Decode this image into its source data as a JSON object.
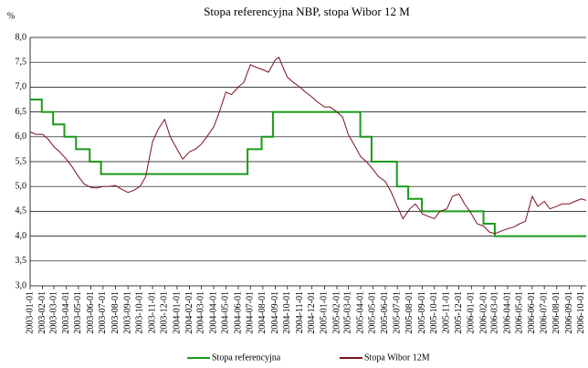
{
  "chart_data": {
    "type": "line",
    "title": "Stopa referencyjna NBP, stopa Wibor 12 M",
    "y_label": "%",
    "xlim": [
      "2003-01-01",
      "2006-10-13"
    ],
    "ylim": [
      3,
      8
    ],
    "yticks": [
      {
        "value": 3,
        "label": "3,0"
      },
      {
        "value": 3.5,
        "label": "3,5"
      },
      {
        "value": 4,
        "label": "4,0"
      },
      {
        "value": 4.5,
        "label": "4,5"
      },
      {
        "value": 5,
        "label": "5,0"
      },
      {
        "value": 5.5,
        "label": "5,5"
      },
      {
        "value": 6,
        "label": "6,0"
      },
      {
        "value": 6.5,
        "label": "6,5"
      },
      {
        "value": 7,
        "label": "7,0"
      },
      {
        "value": 7.5,
        "label": "7,5"
      },
      {
        "value": 8,
        "label": "8,0"
      }
    ],
    "xticks": [
      "2003-01-01",
      "2003-02-01",
      "2003-03-01",
      "2003-04-01",
      "2003-05-01",
      "2003-06-01",
      "2003-07-01",
      "2003-08-01",
      "2003-09-01",
      "2003-10-01",
      "2003-11-01",
      "2003-12-01",
      "2004-01-01",
      "2004-02-01",
      "2004-03-01",
      "2004-04-01",
      "2004-05-01",
      "2004-06-01",
      "2004-07-01",
      "2004-08-01",
      "2004-09-01",
      "2004-10-01",
      "2004-11-01",
      "2004-12-01",
      "2005-01-01",
      "2005-02-01",
      "2005-03-01",
      "2005-04-01",
      "2005-05-01",
      "2005-06-01",
      "2005-07-01",
      "2005-08-01",
      "2005-09-01",
      "2005-10-01",
      "2005-11-01",
      "2005-12-01",
      "2006-01-01",
      "2006-02-01",
      "2006-03-01",
      "2006-04-01",
      "2006-05-01",
      "2006-06-01",
      "2006-07-01",
      "2006-08-01",
      "2006-09-01",
      "2006-10-01"
    ],
    "grid": true,
    "legend": "bottom",
    "series": [
      {
        "name": "Stopa referencyjna",
        "color": "#1a9a1a",
        "drawstyle": "steps-post",
        "x": [
          "2003-01-01",
          "2003-01-30",
          "2003-02-27",
          "2003-03-27",
          "2003-04-25",
          "2003-05-29",
          "2003-06-26",
          "2004-06-24",
          "2004-07-29",
          "2004-08-26",
          "2005-03-31",
          "2005-04-28",
          "2005-06-30",
          "2005-07-28",
          "2005-08-31",
          "2006-01-31",
          "2006-02-28",
          "2006-10-13"
        ],
        "values": [
          6.75,
          6.5,
          6.25,
          6.0,
          5.75,
          5.5,
          5.25,
          5.75,
          6.0,
          6.5,
          6.0,
          5.5,
          5.0,
          4.75,
          4.5,
          4.25,
          4.0,
          4.0
        ]
      },
      {
        "name": "Stopa Wibor 12M",
        "color": "#7b1020",
        "drawstyle": "default",
        "x": [
          "2003-01-01",
          "2003-01-15",
          "2003-02-01",
          "2003-02-15",
          "2003-03-01",
          "2003-03-15",
          "2003-04-01",
          "2003-04-15",
          "2003-05-01",
          "2003-05-15",
          "2003-06-01",
          "2003-06-15",
          "2003-07-01",
          "2003-07-15",
          "2003-08-01",
          "2003-08-15",
          "2003-09-01",
          "2003-09-15",
          "2003-10-01",
          "2003-10-15",
          "2003-11-01",
          "2003-11-15",
          "2003-12-01",
          "2003-12-15",
          "2004-01-01",
          "2004-01-15",
          "2004-02-01",
          "2004-02-15",
          "2004-03-01",
          "2004-03-15",
          "2004-04-01",
          "2004-04-15",
          "2004-05-01",
          "2004-05-15",
          "2004-06-01",
          "2004-06-15",
          "2004-07-01",
          "2004-07-15",
          "2004-08-01",
          "2004-08-15",
          "2004-09-01",
          "2004-09-10",
          "2004-09-20",
          "2004-10-01",
          "2004-10-15",
          "2004-11-01",
          "2004-11-15",
          "2004-12-01",
          "2004-12-15",
          "2005-01-01",
          "2005-01-15",
          "2005-02-01",
          "2005-02-15",
          "2005-03-01",
          "2005-03-15",
          "2005-04-01",
          "2005-04-15",
          "2005-05-01",
          "2005-05-15",
          "2005-06-01",
          "2005-06-15",
          "2005-07-01",
          "2005-07-15",
          "2005-08-01",
          "2005-08-15",
          "2005-09-01",
          "2005-09-15",
          "2005-10-01",
          "2005-10-15",
          "2005-11-01",
          "2005-11-15",
          "2005-12-01",
          "2005-12-15",
          "2006-01-01",
          "2006-01-15",
          "2006-02-01",
          "2006-02-15",
          "2006-03-01",
          "2006-03-15",
          "2006-04-01",
          "2006-04-15",
          "2006-05-01",
          "2006-05-15",
          "2006-06-01",
          "2006-06-15",
          "2006-07-01",
          "2006-07-15",
          "2006-08-01",
          "2006-08-15",
          "2006-09-01",
          "2006-09-15",
          "2006-10-01",
          "2006-10-13"
        ],
        "values": [
          6.1,
          6.05,
          6.05,
          5.95,
          5.8,
          5.7,
          5.55,
          5.4,
          5.2,
          5.05,
          4.98,
          4.97,
          5.0,
          5.0,
          5.02,
          4.95,
          4.88,
          4.92,
          5.0,
          5.2,
          5.9,
          6.15,
          6.35,
          6.0,
          5.75,
          5.55,
          5.7,
          5.75,
          5.85,
          6.0,
          6.2,
          6.5,
          6.9,
          6.85,
          7.0,
          7.1,
          7.45,
          7.4,
          7.35,
          7.3,
          7.55,
          7.6,
          7.4,
          7.2,
          7.1,
          7.0,
          6.9,
          6.8,
          6.7,
          6.6,
          6.6,
          6.5,
          6.4,
          6.05,
          5.85,
          5.6,
          5.5,
          5.35,
          5.2,
          5.1,
          4.9,
          4.6,
          4.35,
          4.55,
          4.65,
          4.45,
          4.4,
          4.35,
          4.5,
          4.55,
          4.8,
          4.85,
          4.65,
          4.45,
          4.25,
          4.2,
          4.08,
          4.05,
          4.1,
          4.15,
          4.18,
          4.25,
          4.3,
          4.8,
          4.6,
          4.7,
          4.55,
          4.6,
          4.65,
          4.65,
          4.7,
          4.75,
          4.72
        ]
      }
    ]
  }
}
